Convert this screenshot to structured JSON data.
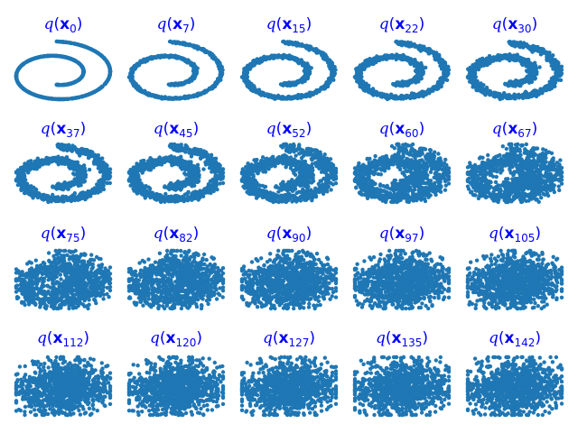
{
  "chart_data": {
    "type": "scatter",
    "layout": {
      "rows": 4,
      "cols": 5,
      "axes": "off",
      "grid": false
    },
    "marker_color": "#1f77b4",
    "title_color": "#0000ff",
    "title_template": {
      "func": "q",
      "var": "x"
    },
    "points_per_panel": 1000,
    "spiral": {
      "turns_from": 1.5,
      "turns_to": 4.5,
      "x_range": [
        -1.0,
        1.0
      ],
      "y_range": [
        -1.0,
        1.0
      ]
    },
    "panels": [
      {
        "step": "0",
        "noise": 0.0
      },
      {
        "step": "7",
        "noise": 0.03
      },
      {
        "step": "15",
        "noise": 0.05
      },
      {
        "step": "22",
        "noise": 0.07
      },
      {
        "step": "30",
        "noise": 0.09
      },
      {
        "step": "37",
        "noise": 0.11
      },
      {
        "step": "45",
        "noise": 0.13
      },
      {
        "step": "52",
        "noise": 0.17
      },
      {
        "step": "60",
        "noise": 0.22
      },
      {
        "step": "67",
        "noise": 0.27
      },
      {
        "step": "75",
        "noise": 0.33
      },
      {
        "step": "82",
        "noise": 0.38
      },
      {
        "step": "90",
        "noise": 0.44
      },
      {
        "step": "97",
        "noise": 0.5
      },
      {
        "step": "105",
        "noise": 0.55
      },
      {
        "step": "112",
        "noise": 0.6
      },
      {
        "step": "120",
        "noise": 0.65
      },
      {
        "step": "127",
        "noise": 0.7
      },
      {
        "step": "135",
        "noise": 0.75
      },
      {
        "step": "142",
        "noise": 0.8
      }
    ]
  }
}
